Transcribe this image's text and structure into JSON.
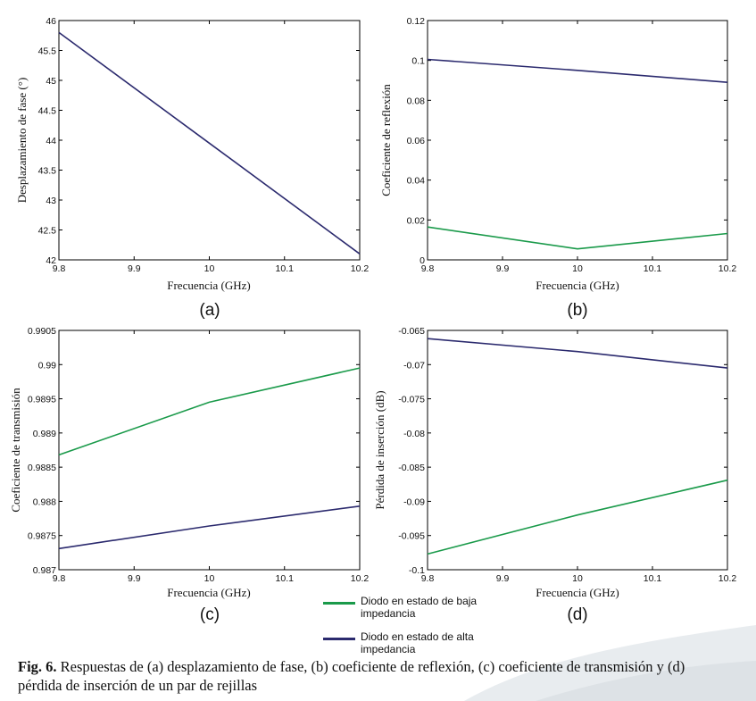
{
  "colors": {
    "green": "#1a9a4a",
    "navy": "#2b2a6e",
    "axis": "#000000"
  },
  "legend": [
    {
      "series": "green",
      "label": "Diodo en estado de baja impedancia"
    },
    {
      "series": "navy",
      "label": "Diodo en estado de alta impedancia"
    }
  ],
  "caption": {
    "label": "Fig. 6.",
    "text": "Respuestas de (a) desplazamiento de fase, (b) coeficiente de reflexión, (c) coeficiente de transmisión y (d) pérdida de inserción de un par de rejillas"
  },
  "chart_data": [
    {
      "id": "a",
      "panel_label": "(a)",
      "type": "line",
      "xlabel": "Frecuencia (GHz)",
      "ylabel": "Desplazamiento de fase (°)",
      "xlim": [
        9.8,
        10.2
      ],
      "ylim": [
        42,
        46
      ],
      "xticks": [
        "9.8",
        "9.9",
        "10",
        "10.1",
        "10.2"
      ],
      "yticks": [
        "42",
        "42.5",
        "43",
        "43.5",
        "44",
        "44.5",
        "45",
        "45.5",
        "46"
      ],
      "series": [
        {
          "name": "navy",
          "x": [
            9.8,
            10.0,
            10.2
          ],
          "y": [
            45.8,
            43.95,
            42.1
          ]
        }
      ]
    },
    {
      "id": "b",
      "panel_label": "(b)",
      "type": "line",
      "xlabel": "Frecuencia (GHz)",
      "ylabel": "Coeficiente de reflexión",
      "xlim": [
        9.8,
        10.2
      ],
      "ylim": [
        0,
        0.12
      ],
      "xticks": [
        "9.8",
        "9.9",
        "10",
        "10.1",
        "10.2"
      ],
      "yticks": [
        "0",
        "0.02",
        "0.04",
        "0.06",
        "0.08",
        "0.1",
        "0.12"
      ],
      "series": [
        {
          "name": "navy",
          "x": [
            9.8,
            10.0,
            10.2
          ],
          "y": [
            0.1005,
            0.095,
            0.089
          ]
        },
        {
          "name": "green",
          "x": [
            9.8,
            10.0,
            10.2
          ],
          "y": [
            0.0165,
            0.0055,
            0.0132
          ]
        }
      ]
    },
    {
      "id": "c",
      "panel_label": "(c)",
      "type": "line",
      "xlabel": "Frecuencia (GHz)",
      "ylabel": "Coeficiente de transmisión",
      "xlim": [
        9.8,
        10.2
      ],
      "ylim": [
        0.987,
        0.9905
      ],
      "xticks": [
        "9.8",
        "9.9",
        "10",
        "10.1",
        "10.2"
      ],
      "yticks": [
        "0.987",
        "0.9875",
        "0.988",
        "0.9885",
        "0.989",
        "0.9895",
        "0.99",
        "0.9905"
      ],
      "series": [
        {
          "name": "green",
          "x": [
            9.8,
            10.0,
            10.2
          ],
          "y": [
            0.98868,
            0.98945,
            0.98995
          ]
        },
        {
          "name": "navy",
          "x": [
            9.8,
            10.0,
            10.2
          ],
          "y": [
            0.98731,
            0.98764,
            0.98793
          ]
        }
      ]
    },
    {
      "id": "d",
      "panel_label": "(d)",
      "type": "line",
      "xlabel": "Frecuencia (GHz)",
      "ylabel": "Pérdida de inserción (dB)",
      "xlim": [
        9.8,
        10.2
      ],
      "ylim": [
        -0.1,
        -0.065
      ],
      "xticks": [
        "9.8",
        "9.9",
        "10",
        "10.1",
        "10.2"
      ],
      "yticks": [
        "-0.1",
        "-0.095",
        "-0.09",
        "-0.085",
        "-0.08",
        "-0.075",
        "-0.07",
        "-0.065"
      ],
      "series": [
        {
          "name": "navy",
          "x": [
            9.8,
            10.0,
            10.2
          ],
          "y": [
            -0.0662,
            -0.0681,
            -0.0705
          ]
        },
        {
          "name": "green",
          "x": [
            9.8,
            10.0,
            10.2
          ],
          "y": [
            -0.0977,
            -0.092,
            -0.0869
          ]
        }
      ]
    }
  ]
}
